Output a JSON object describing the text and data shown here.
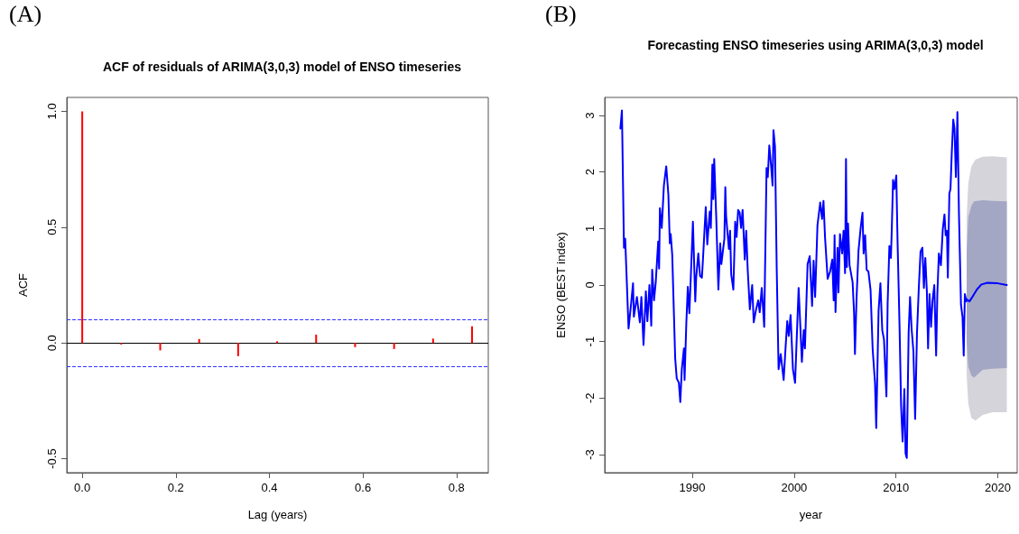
{
  "chart_data": [
    {
      "type": "bar",
      "title": "ACF of residuals of ARIMA(3,0,3) model of ENSO timeseries",
      "xlabel": "Lag (years)",
      "ylabel": "ACF",
      "annotations": [
        "(A)"
      ],
      "x": [
        0,
        0.0833,
        0.1667,
        0.25,
        0.3333,
        0.4167,
        0.5,
        0.5833,
        0.6667,
        0.75,
        0.8333
      ],
      "series": [
        {
          "color": "#ff0000",
          "values": [
            1,
            -0.007,
            -0.032,
            0.017,
            -0.057,
            0.007,
            0.036,
            -0.018,
            -0.026,
            0.019,
            0.072
          ]
        }
      ],
      "xlim": [
        -0.033,
        0.868
      ],
      "xticks": [
        {
          "value": 0,
          "label": "0.0"
        },
        0.2,
        0.4,
        0.6,
        0.8
      ],
      "ylim": [
        -0.56,
        1.06
      ],
      "yticks": [
        -0.5,
        {
          "value": 0,
          "label": "0.0"
        },
        0.5,
        {
          "value": 1,
          "label": "1.0"
        }
      ],
      "ref_lines": [
        {
          "axis": "y",
          "value": 0.097,
          "label": null,
          "color": "#3333ff",
          "line_style": "dashed"
        },
        {
          "axis": "y",
          "value": -0.097,
          "label": null,
          "color": "#3333ff",
          "line_style": "dashed"
        },
        {
          "axis": "y",
          "value": 0,
          "label": null,
          "color": "#000000",
          "line_style": "solid"
        }
      ]
    },
    {
      "type": "line",
      "title": "Forecasting ENSO timeseries using ARIMA(3,0,3) model",
      "xlabel": "year",
      "ylabel": "ENSO (BEST index)",
      "annotations": [
        "(B)"
      ],
      "marker": "none",
      "line_style": "solid",
      "series": [
        {
          "type": "area",
          "color": "#d4d4da",
          "x": [
            2016.94,
            2017.1,
            2017.4,
            2017.8,
            2018.5,
            2019.5,
            2020.88
          ],
          "values": [
            null,
            null,
            null,
            null,
            null,
            null,
            null
          ],
          "lower": [
            -1.6,
            -2.1,
            -2.35,
            -2.4,
            -2.3,
            -2.25,
            -2.25
          ],
          "upper": [
            1.2,
            1.8,
            2.1,
            2.22,
            2.27,
            2.28,
            2.26
          ]
        },
        {
          "type": "area",
          "color": "#a3a7c4",
          "x": [
            2016.94,
            2017.1,
            2017.4,
            2017.65,
            2018.5,
            2019.5,
            2020.88
          ],
          "values": [
            null,
            null,
            null,
            null,
            null,
            null,
            null
          ],
          "lower": [
            -1.0,
            -1.45,
            -1.6,
            -1.64,
            -1.5,
            -1.48,
            -1.47
          ],
          "upper": [
            0.6,
            1.2,
            1.4,
            1.48,
            1.5,
            1.49,
            1.48
          ]
        },
        {
          "color": "#0000ff",
          "x": [
            1982.94,
            1983.09,
            1983.29,
            1983.41,
            1983.74,
            1983.97,
            1984.18,
            1984.26,
            1984.56,
            1984.85,
            1985.0,
            1985.21,
            1985.44,
            1985.59,
            1985.79,
            1985.97,
            1986.06,
            1986.24,
            1986.41,
            1986.65,
            1986.74,
            1986.82,
            1987.0,
            1987.21,
            1987.44,
            1987.65,
            1987.79,
            1987.88,
            1988.03,
            1988.32,
            1988.47,
            1988.68,
            1988.82,
            1988.97,
            1989.18,
            1989.24,
            1989.41,
            1989.56,
            1989.71,
            1989.88,
            1990.06,
            1990.29,
            1990.38,
            1990.59,
            1990.76,
            1990.94,
            1991.03,
            1991.32,
            1991.47,
            1991.71,
            1991.82,
            1991.97,
            1992.06,
            1992.15,
            1992.35,
            1992.56,
            1992.74,
            1992.85,
            1993.15,
            1993.24,
            1993.32,
            1993.59,
            1993.71,
            1993.82,
            1994.03,
            1994.21,
            1994.35,
            1994.5,
            1994.65,
            1994.79,
            1994.94,
            1995.15,
            1995.29,
            1995.44,
            1995.65,
            1995.88,
            1996.03,
            1996.24,
            1996.47,
            1996.62,
            1996.82,
            1997.06,
            1997.29,
            1997.41,
            1997.56,
            1997.74,
            1997.88,
            1997.97,
            1998.12,
            1998.29,
            1998.47,
            1998.68,
            1998.97,
            1999.18,
            1999.32,
            1999.47,
            1999.65,
            1999.88,
            2000.09,
            2000.44,
            2000.76,
            2000.94,
            2001.06,
            2001.32,
            2001.53,
            2001.76,
            2001.91,
            2002.06,
            2002.29,
            2002.56,
            2002.74,
            2002.88,
            2003.03,
            2003.29,
            2003.53,
            2003.74,
            2003.88,
            2003.97,
            2004.06,
            2004.26,
            2004.35,
            2004.5,
            2004.71,
            2004.85,
            2005.0,
            2005.09,
            2005.18,
            2005.29,
            2005.44,
            2005.74,
            2005.88,
            2005.97,
            2006.12,
            2006.32,
            2006.53,
            2006.71,
            2006.82,
            2006.97,
            2007.12,
            2007.29,
            2007.5,
            2007.71,
            2007.94,
            2008.06,
            2008.29,
            2008.47,
            2008.65,
            2008.82,
            2009.06,
            2009.18,
            2009.35,
            2009.5,
            2009.59,
            2009.71,
            2009.85,
            2010.03,
            2010.15,
            2010.35,
            2010.5,
            2010.65,
            2010.82,
            2010.94,
            2011.06,
            2011.24,
            2011.38,
            2011.53,
            2011.71,
            2011.88,
            2012.06,
            2012.24,
            2012.41,
            2012.59,
            2012.74,
            2012.88,
            2013.03,
            2013.15,
            2013.29,
            2013.44,
            2013.59,
            2013.76,
            2013.94,
            2014.06,
            2014.21,
            2014.41,
            2014.59,
            2014.76,
            2014.88,
            2015.0,
            2015.09,
            2015.24,
            2015.35,
            2015.47,
            2015.62,
            2015.74,
            2015.88,
            2016.03,
            2016.18,
            2016.38,
            2016.53,
            2016.65,
            2016.76,
            2016.91
          ],
          "values": [
            2.77,
            3.09,
            0.66,
            0.82,
            -0.77,
            -0.37,
            0.03,
            -0.56,
            -0.21,
            -0.66,
            -0.21,
            -1.06,
            -0.11,
            -0.64,
            0,
            -0.72,
            0.27,
            -0.27,
            0.05,
            0.77,
            0.29,
            1.36,
            1.01,
            1.76,
            2.1,
            1.6,
            0.74,
            0.9,
            0.53,
            -1.3,
            -1.65,
            -1.73,
            -2.07,
            -1.49,
            -1.12,
            -1.68,
            -0.69,
            -0.03,
            -0.5,
            0.27,
            1.12,
            -0.29,
            0.13,
            0.56,
            0.16,
            0.13,
            0.4,
            1.38,
            0.72,
            1.3,
            1.01,
            2.13,
            1.52,
            2.23,
            1.2,
            -0.08,
            0.74,
            0.37,
            0.82,
            1.73,
            1.22,
            0.64,
            0.96,
            0.19,
            -0.08,
            1.12,
            0.85,
            1.33,
            1.28,
            1.01,
            1.33,
            0.45,
            0.96,
            0.27,
            -0.43,
            0,
            -0.66,
            -0.45,
            -0.27,
            -0.48,
            -0.05,
            -0.74,
            2.07,
            1.91,
            2.47,
            2.1,
            1.76,
            2.74,
            2.45,
            0.27,
            -1.49,
            -1.22,
            -1.68,
            -1.04,
            -0.64,
            -0.9,
            -0.53,
            -1.49,
            -1.73,
            -0.05,
            -1.36,
            -0.8,
            -1.12,
            0.37,
            0.51,
            -0.37,
            0.43,
            -0.21,
            1.06,
            1.46,
            1.17,
            1.49,
            0.85,
            0.11,
            0.24,
            0.45,
            -0.27,
            0.88,
            -0.48,
            0.66,
            -0.13,
            0.9,
            0.56,
            0.96,
            0.21,
            2.23,
            0.32,
            1.09,
            0.35,
            0.05,
            -0.48,
            -1.22,
            -0.27,
            0.61,
            1.01,
            1.28,
            0.56,
            0.88,
            0.27,
            0.24,
            -0.08,
            -1.14,
            -1.73,
            -2.53,
            -0.45,
            0.03,
            -0.8,
            -0.96,
            -1.97,
            -0.32,
            0.69,
            0.48,
            1.01,
            1.86,
            1.7,
            1.94,
            0.8,
            -0.74,
            -2.13,
            -2.77,
            -1.84,
            -2.98,
            -3.06,
            -0.85,
            -0.21,
            -0.77,
            -1.17,
            -2.37,
            -0.85,
            -0.05,
            0.59,
            0.66,
            -0.05,
            0.48,
            -0.11,
            -1.12,
            -0.16,
            -0.74,
            -0.27,
            0,
            -1.25,
            -0.16,
            0.56,
            0.35,
            0.98,
            1.25,
            0.88,
            0.96,
            0.13,
            1.62,
            1.7,
            2.31,
            2.93,
            2.77,
            1.91,
            3.06,
            1.28,
            -0.35,
            -0.56,
            -1.25,
            -0.16,
            -0.29
          ]
        },
        {
          "color": "#0000ff",
          "x": [
            2016.94,
            2017.21,
            2017.5,
            2017.94,
            2018.38,
            2018.97,
            2020.0,
            2020.88
          ],
          "values": [
            -0.25,
            -0.29,
            -0.21,
            -0.08,
            0.01,
            0.04,
            0.03,
            0.0
          ]
        }
      ],
      "xlim": [
        1981.4,
        2021.9
      ],
      "xticks": [
        1990,
        2000,
        2010,
        2020
      ],
      "ylim": [
        -3.32,
        3.32
      ],
      "yticks": [
        -3,
        -2,
        -1,
        0,
        1,
        2,
        3
      ]
    }
  ]
}
